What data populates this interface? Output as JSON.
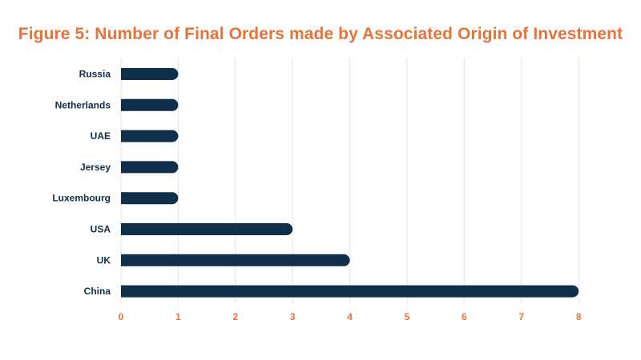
{
  "chart_data": {
    "type": "bar",
    "orientation": "horizontal",
    "title": "Figure 5: Number of Final Orders made by Associated Origin of Investment",
    "categories": [
      "Russia",
      "Netherlands",
      "UAE",
      "Jersey",
      "Luxembourg",
      "USA",
      "UK",
      "China"
    ],
    "values": [
      1,
      1,
      1,
      1,
      1,
      3,
      4,
      8
    ],
    "xticks": [
      "0",
      "1",
      "2",
      "3",
      "4",
      "5",
      "6",
      "7",
      "8"
    ],
    "xlim": [
      0,
      8
    ],
    "grid": true,
    "legend": "none",
    "colors": {
      "bar": "#0f2f4a",
      "title": "#e8733a",
      "tick": "#e8733a",
      "grid": "#e6e6e6"
    }
  }
}
